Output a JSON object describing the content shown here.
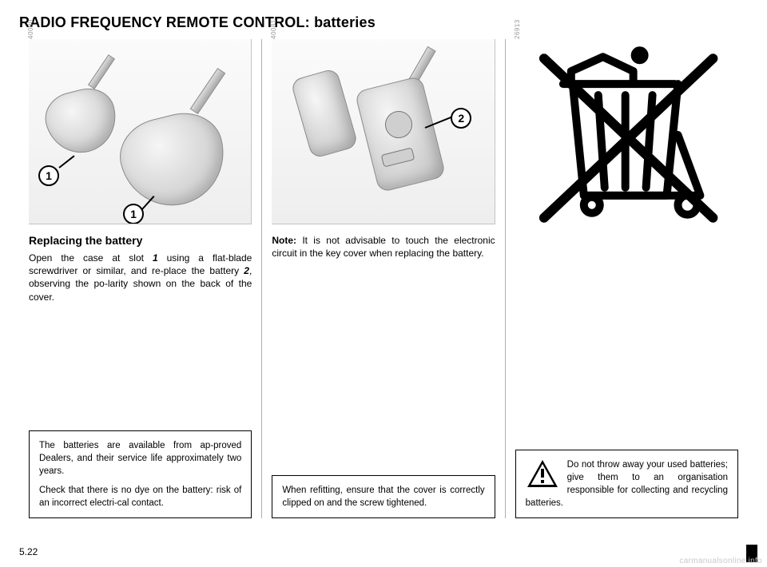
{
  "title": "RADIO FREQUENCY REMOTE CONTROL: batteries",
  "page_number": "5.22",
  "watermark": "carmanualsonline.info",
  "col1": {
    "fig_id": "40080",
    "callout_label": "1",
    "subhead": "Replacing the battery",
    "body_html": "Open the case at slot <span class=\"num\">1</span> using a flat-blade screwdriver or similar, and re-place the battery <span class=\"num\">2</span>, observing the po-larity shown on the back of the cover.",
    "box_p1": "The batteries are available from ap-proved Dealers, and their service life approximately two years.",
    "box_p2": "Check that there is no dye on the battery: risk of an incorrect electri-cal contact."
  },
  "col2": {
    "fig_id": "40081",
    "callout_label": "2",
    "note_label": "Note:",
    "note_text": " It is not advisable to touch the electronic circuit in the key cover when replacing the battery.",
    "box_text": "When refitting, ensure that the cover is correctly clipped on and the screw tightened."
  },
  "col3": {
    "fig_id": "26913",
    "warn_text": "Do not throw away your used batteries; give them to an organisation responsible for collecting and recycling batteries."
  }
}
